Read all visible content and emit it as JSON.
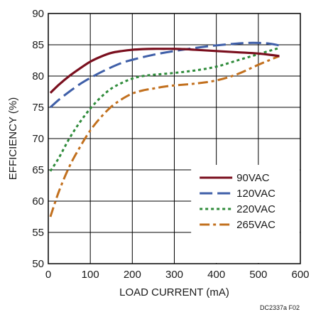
{
  "chart_data": {
    "type": "line",
    "xlabel": "LOAD CURRENT (mA)",
    "ylabel": "EFFICIENCY (%)",
    "xlim": [
      0,
      600
    ],
    "ylim": [
      50,
      90
    ],
    "xticks": [
      0,
      100,
      200,
      300,
      400,
      500,
      600
    ],
    "yticks": [
      50,
      55,
      60,
      65,
      70,
      75,
      80,
      85,
      90
    ],
    "grid": true,
    "legend_position": "bottom-right",
    "footnote": "DC2337a F02",
    "series": [
      {
        "name": "90VAC",
        "color": "#7a0f1e",
        "style": "solid",
        "x": [
          5,
          25,
          50,
          75,
          100,
          125,
          150,
          175,
          200,
          225,
          250,
          275,
          300,
          325,
          350,
          400,
          450,
          500,
          550
        ],
        "y": [
          77.3,
          78.6,
          80.0,
          81.2,
          82.3,
          83.1,
          83.7,
          84.0,
          84.2,
          84.3,
          84.35,
          84.35,
          84.35,
          84.3,
          84.2,
          84.0,
          83.8,
          83.6,
          83.2
        ]
      },
      {
        "name": "120VAC",
        "color": "#3f5fa8",
        "style": "dashed",
        "x": [
          5,
          25,
          50,
          75,
          100,
          125,
          150,
          175,
          200,
          250,
          300,
          350,
          400,
          450,
          475,
          500,
          525,
          550
        ],
        "y": [
          75.0,
          76.2,
          77.5,
          78.7,
          79.7,
          80.6,
          81.4,
          82.1,
          82.6,
          83.4,
          84.0,
          84.5,
          84.9,
          85.2,
          85.3,
          85.3,
          85.2,
          84.9
        ]
      },
      {
        "name": "220VAC",
        "color": "#2e8b3a",
        "style": "dotted",
        "x": [
          5,
          25,
          50,
          75,
          100,
          125,
          150,
          175,
          200,
          225,
          250,
          300,
          350,
          400,
          450,
          500,
          550
        ],
        "y": [
          64.8,
          66.9,
          70.0,
          72.6,
          74.8,
          76.6,
          78.0,
          78.9,
          79.6,
          80.0,
          80.2,
          80.5,
          80.9,
          81.5,
          82.5,
          83.5,
          84.5
        ]
      },
      {
        "name": "265VAC",
        "color": "#c2701e",
        "style": "dashdot",
        "x": [
          5,
          25,
          50,
          75,
          100,
          125,
          150,
          175,
          200,
          225,
          250,
          275,
          300,
          350,
          400,
          450,
          500,
          550
        ],
        "y": [
          57.5,
          61.5,
          65.5,
          68.6,
          71.3,
          73.4,
          75.1,
          76.3,
          77.2,
          77.7,
          78.0,
          78.3,
          78.5,
          78.8,
          79.3,
          80.3,
          81.8,
          83.2
        ]
      }
    ]
  }
}
